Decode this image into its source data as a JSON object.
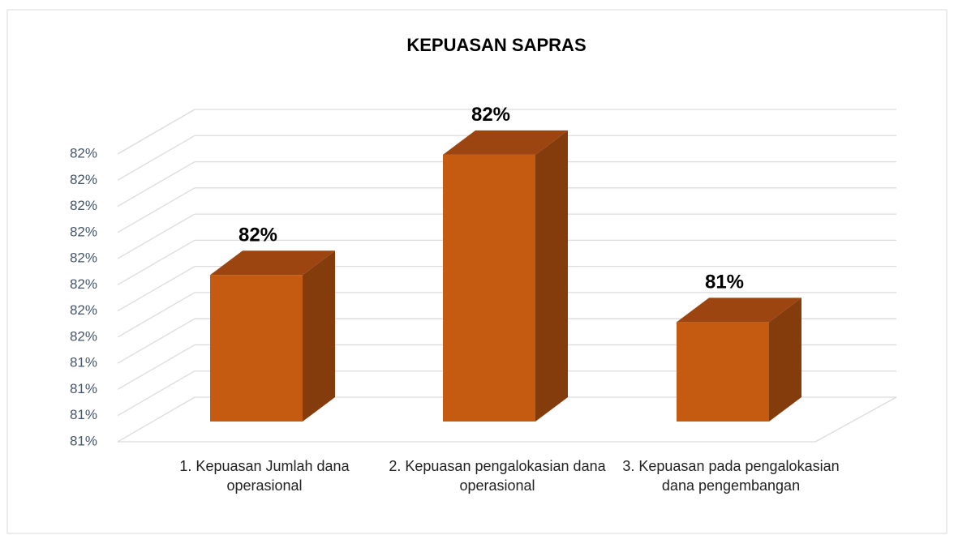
{
  "chart_data": {
    "type": "bar3d",
    "title": "KEPUASAN SAPRAS",
    "categories": [
      "1.    Kepuasan Jumlah dana operasional",
      "2.    Kepuasan pengalokasian dana operasional",
      "3.    Kepuasan pada pengalokasian dana pengembangan"
    ],
    "values": [
      81.58,
      81.81,
      81.49
    ],
    "value_labels": [
      "82%",
      "82%",
      "81%"
    ],
    "color": "#c55a11",
    "ylim": [
      81.3,
      81.85
    ],
    "yticks": [
      {
        "value": 81.3,
        "label": "81%"
      },
      {
        "value": 81.35,
        "label": "81%"
      },
      {
        "value": 81.4,
        "label": "81%"
      },
      {
        "value": 81.45,
        "label": "81%"
      },
      {
        "value": 81.5,
        "label": "82%"
      },
      {
        "value": 81.55,
        "label": "82%"
      },
      {
        "value": 81.6,
        "label": "82%"
      },
      {
        "value": 81.65,
        "label": "82%"
      },
      {
        "value": 81.7,
        "label": "82%"
      },
      {
        "value": 81.75,
        "label": "82%"
      },
      {
        "value": 81.8,
        "label": "82%"
      },
      {
        "value": 81.85,
        "label": "82%"
      }
    ],
    "grid": true
  }
}
